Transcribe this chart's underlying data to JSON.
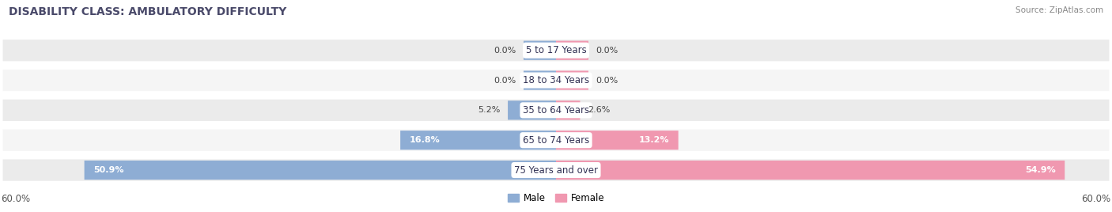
{
  "title": "DISABILITY CLASS: AMBULATORY DIFFICULTY",
  "source": "Source: ZipAtlas.com",
  "categories": [
    "5 to 17 Years",
    "18 to 34 Years",
    "35 to 64 Years",
    "65 to 74 Years",
    "75 Years and over"
  ],
  "male_values": [
    0.0,
    0.0,
    5.2,
    16.8,
    50.9
  ],
  "female_values": [
    0.0,
    0.0,
    2.6,
    13.2,
    54.9
  ],
  "male_color": "#8eadd4",
  "female_color": "#f098b0",
  "row_bg_odd": "#ebebeb",
  "row_bg_even": "#f5f5f5",
  "max_val": 60.0,
  "axis_label_left": "60.0%",
  "axis_label_right": "60.0%",
  "title_color": "#4a4a6a",
  "source_color": "#888888",
  "bar_height": 0.72,
  "stub_size": 3.5,
  "figsize": [
    14.06,
    2.68
  ],
  "dpi": 100
}
